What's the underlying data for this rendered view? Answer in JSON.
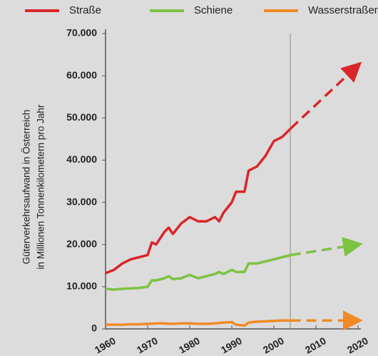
{
  "chart_data": {
    "type": "line",
    "y_title": [
      "Güterverkehrsaufwand in Österreich",
      "in Millionen Tonnenkilometern pro Jahr"
    ],
    "x": [
      1960,
      1962,
      1964,
      1966,
      1968,
      1970,
      1971,
      1972,
      1974,
      1975,
      1976,
      1978,
      1980,
      1982,
      1984,
      1986,
      1987,
      1988,
      1990,
      1991,
      1993,
      1994,
      1996,
      1998,
      2000,
      2002,
      2004,
      2020
    ],
    "series": [
      {
        "name": "Straße",
        "color": "#d9262a",
        "values": [
          13200,
          14000,
          15500,
          16500,
          17000,
          17500,
          20500,
          20000,
          23000,
          24000,
          22500,
          25000,
          26500,
          25500,
          25500,
          26500,
          25500,
          27500,
          30000,
          32500,
          32500,
          37500,
          38500,
          41000,
          44500,
          45500,
          47500,
          62500
        ]
      },
      {
        "name": "Schiene",
        "color": "#7dc242",
        "values": [
          9500,
          9300,
          9500,
          9600,
          9700,
          10000,
          11500,
          11500,
          12000,
          12500,
          11800,
          12000,
          12800,
          12000,
          12500,
          13000,
          13500,
          13000,
          14000,
          13500,
          13500,
          15500,
          15500,
          16000,
          16500,
          17000,
          17500,
          20000
        ]
      },
      {
        "name": "Wasserstraßen",
        "color": "#f08a24",
        "values": [
          1000,
          1000,
          1000,
          1100,
          1100,
          1200,
          1200,
          1300,
          1300,
          1200,
          1200,
          1300,
          1300,
          1200,
          1200,
          1300,
          1400,
          1500,
          1600,
          1000,
          800,
          1500,
          1700,
          1800,
          1900,
          2000,
          2000,
          2000
        ]
      }
    ],
    "dashed_after": 2004,
    "xlim": [
      1960,
      2020
    ],
    "xticks": [
      1960,
      1970,
      1980,
      1990,
      2000,
      2010,
      2020
    ],
    "ylim": [
      0,
      70000
    ],
    "yticks": [
      0,
      {
        "value": 10000,
        "label": "10.000"
      },
      {
        "value": 20000,
        "label": "20.000"
      },
      {
        "value": 30000,
        "label": "30.000"
      },
      {
        "value": 40000,
        "label": "40.000"
      },
      {
        "value": 50000,
        "label": "50.000"
      },
      {
        "value": 60000,
        "label": "60.000"
      },
      {
        "value": 70000,
        "label": "70.000"
      }
    ]
  }
}
